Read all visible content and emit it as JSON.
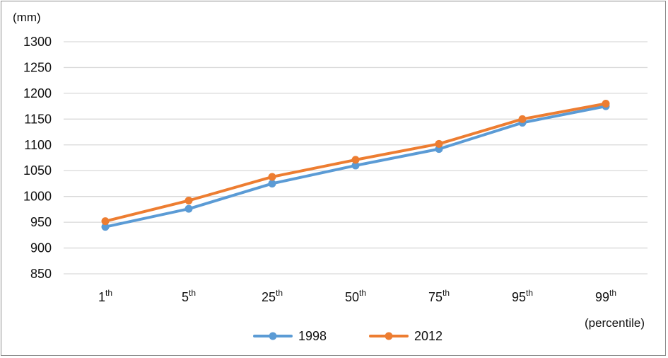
{
  "chart_data": {
    "type": "line",
    "ylabel": "(mm)",
    "xlabel": "(percentile)",
    "categories": [
      "1th",
      "5th",
      "25th",
      "50th",
      "75th",
      "95th",
      "99th"
    ],
    "category_labels": [
      {
        "num": "1",
        "suffix": "th"
      },
      {
        "num": "5",
        "suffix": "th"
      },
      {
        "num": "25",
        "suffix": "th"
      },
      {
        "num": "50",
        "suffix": "th"
      },
      {
        "num": "75",
        "suffix": "th"
      },
      {
        "num": "95",
        "suffix": "th"
      },
      {
        "num": "99",
        "suffix": "th"
      }
    ],
    "ylim": [
      850,
      1300
    ],
    "yticks": [
      850,
      900,
      950,
      1000,
      1050,
      1100,
      1150,
      1200,
      1250,
      1300
    ],
    "grid": true,
    "legend_position": "bottom",
    "series": [
      {
        "name": "1998",
        "color": "#5b9bd5",
        "values": [
          941,
          976,
          1025,
          1060,
          1092,
          1143,
          1175
        ]
      },
      {
        "name": "2012",
        "color": "#ed7d31",
        "values": [
          952,
          992,
          1038,
          1071,
          1102,
          1150,
          1180
        ]
      }
    ]
  }
}
